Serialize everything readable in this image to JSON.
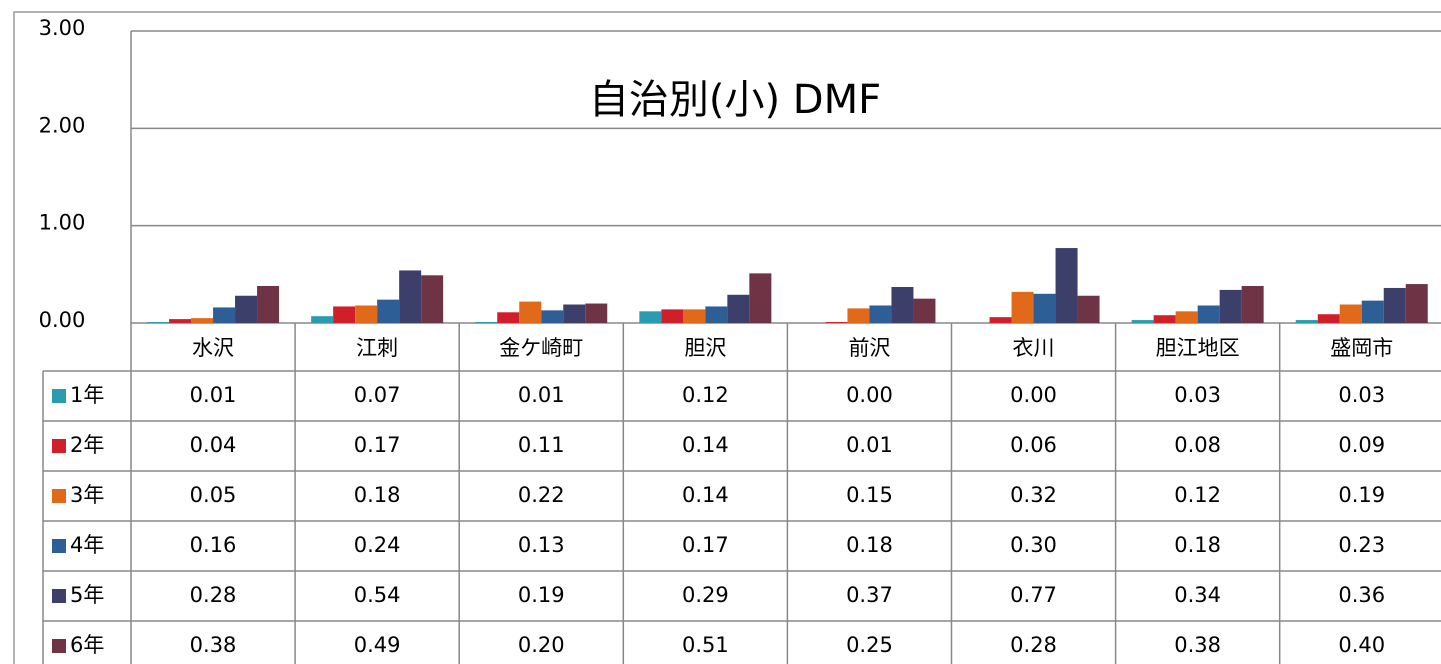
{
  "chart_data": {
    "type": "bar",
    "title": "自治別(小) DMF",
    "categories": [
      "水沢",
      "江刺",
      "金ケ崎町",
      "胆沢",
      "前沢",
      "衣川",
      "胆江地区",
      "盛岡市"
    ],
    "series": [
      {
        "name": "1年",
        "color": "#2a9bb0",
        "values": [
          0.01,
          0.07,
          0.01,
          0.12,
          0.0,
          0.0,
          0.03,
          0.03
        ],
        "value_labels": [
          "0.01",
          "0.07",
          "0.01",
          "0.12",
          "0.00",
          "0.00",
          "0.03",
          "0.03"
        ]
      },
      {
        "name": "2年",
        "color": "#d01f2a",
        "values": [
          0.04,
          0.17,
          0.11,
          0.14,
          0.01,
          0.06,
          0.08,
          0.09
        ],
        "value_labels": [
          "0.04",
          "0.17",
          "0.11",
          "0.14",
          "0.01",
          "0.06",
          "0.08",
          "0.09"
        ]
      },
      {
        "name": "3年",
        "color": "#e06a1a",
        "values": [
          0.05,
          0.18,
          0.22,
          0.14,
          0.15,
          0.32,
          0.12,
          0.19
        ],
        "value_labels": [
          "0.05",
          "0.18",
          "0.22",
          "0.14",
          "0.15",
          "0.32",
          "0.12",
          "0.19"
        ]
      },
      {
        "name": "4年",
        "color": "#2e5e96",
        "values": [
          0.16,
          0.24,
          0.13,
          0.17,
          0.18,
          0.3,
          0.18,
          0.23
        ],
        "value_labels": [
          "0.16",
          "0.24",
          "0.13",
          "0.17",
          "0.18",
          "0.30",
          "0.18",
          "0.23"
        ]
      },
      {
        "name": "5年",
        "color": "#3b3f6a",
        "values": [
          0.28,
          0.54,
          0.19,
          0.29,
          0.37,
          0.77,
          0.34,
          0.36
        ],
        "value_labels": [
          "0.28",
          "0.54",
          "0.19",
          "0.29",
          "0.37",
          "0.77",
          "0.34",
          "0.36"
        ]
      },
      {
        "name": "6年",
        "color": "#6e3344",
        "values": [
          0.38,
          0.49,
          0.2,
          0.51,
          0.25,
          0.28,
          0.38,
          0.4
        ],
        "value_labels": [
          "0.38",
          "0.49",
          "0.20",
          "0.51",
          "0.25",
          "0.28",
          "0.38",
          "0.40"
        ]
      }
    ],
    "ylim": [
      0,
      3
    ],
    "yticks": [
      {
        "value": 0,
        "label": "0.00"
      },
      {
        "value": 1,
        "label": "1.00"
      },
      {
        "value": 2,
        "label": "2.00"
      },
      {
        "value": 3,
        "label": "3.00"
      }
    ],
    "grid": true
  }
}
